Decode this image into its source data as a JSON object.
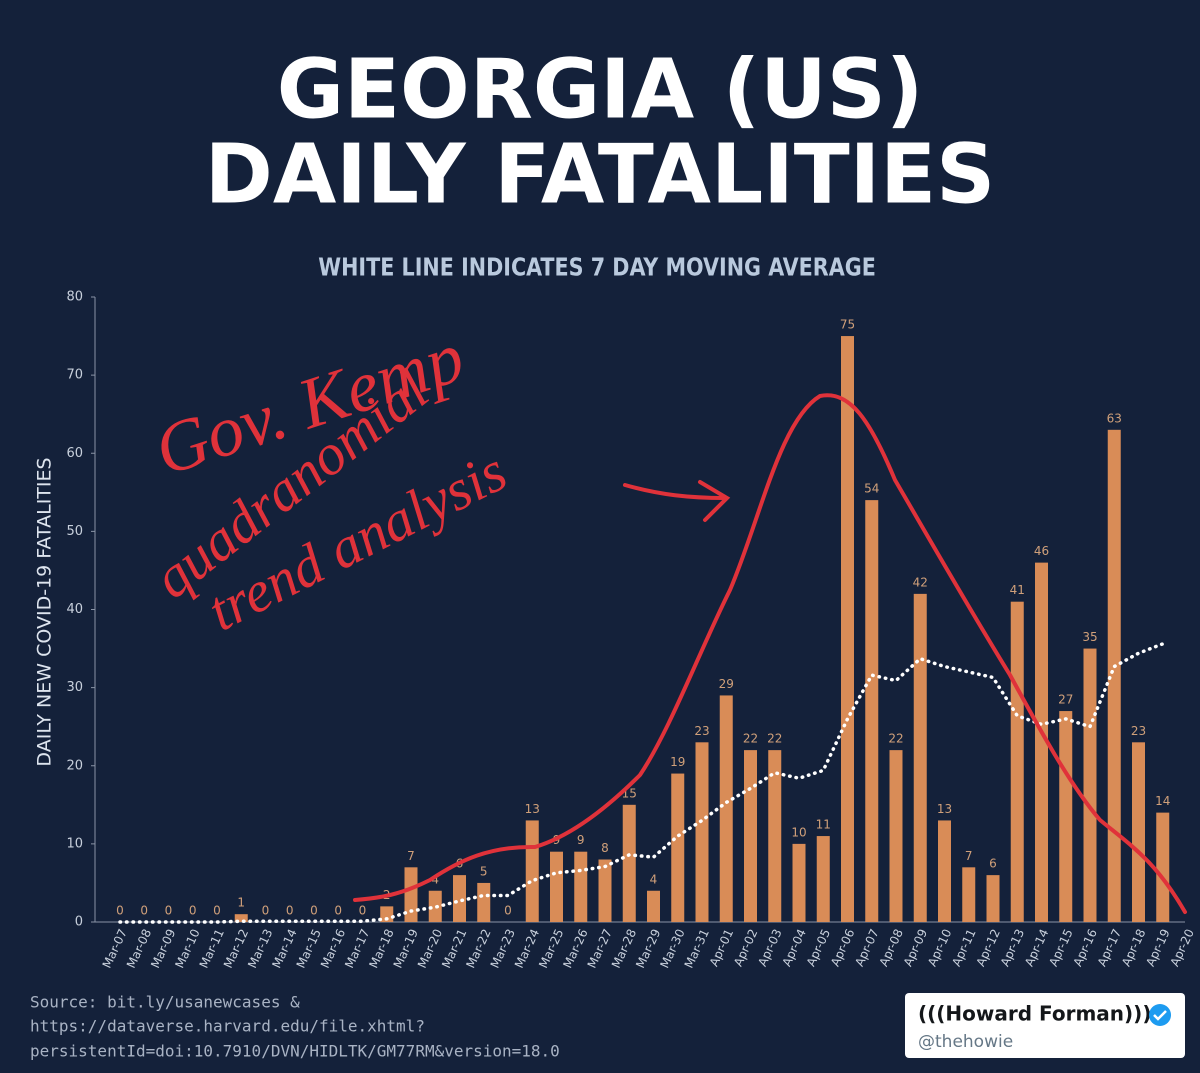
{
  "chart_data": {
    "type": "bar",
    "title": [
      "GEORGIA (US)",
      "DAILY FATALITIES"
    ],
    "subtitle": "WHITE LINE INDICATES 7 DAY MOVING AVERAGE",
    "y_label": "DAILY NEW COVID-19 FATALITIES",
    "categories": [
      "Mar-07",
      "Mar-08",
      "Mar-09",
      "Mar-10",
      "Mar-11",
      "Mar-12",
      "Mar-13",
      "Mar-14",
      "Mar-15",
      "Mar-16",
      "Mar-17",
      "Mar-18",
      "Mar-19",
      "Mar-20",
      "Mar-21",
      "Mar-22",
      "Mar-23",
      "Mar-24",
      "Mar-25",
      "Mar-26",
      "Mar-27",
      "Mar-28",
      "Mar-29",
      "Mar-30",
      "Mar-31",
      "Apr-01",
      "Apr-02",
      "Apr-03",
      "Apr-04",
      "Apr-05",
      "Apr-06",
      "Apr-07",
      "Apr-08",
      "Apr-09",
      "Apr-10",
      "Apr-11",
      "Apr-12",
      "Apr-13",
      "Apr-14",
      "Apr-15",
      "Apr-16",
      "Apr-17",
      "Apr-18",
      "Apr-19",
      "Apr-20"
    ],
    "series": [
      {
        "color": "#d98c57",
        "values": [
          0,
          0,
          0,
          0,
          0,
          1,
          0,
          0,
          0,
          0,
          0,
          2,
          7,
          4,
          6,
          5,
          0,
          13,
          9,
          9,
          8,
          15,
          4,
          19,
          23,
          29,
          22,
          22,
          10,
          11,
          75,
          54,
          22,
          42,
          13,
          7,
          6,
          41,
          46,
          27,
          35,
          63,
          23,
          14,
          null
        ]
      },
      {
        "color": "#ffffff",
        "style": "dotted",
        "values": [
          0,
          0,
          0,
          0,
          0,
          0.1,
          0.1,
          0.1,
          0.1,
          0.1,
          0.1,
          0.4,
          1.4,
          1.9,
          2.7,
          3.4,
          3.4,
          5.3,
          6.3,
          6.6,
          7.1,
          8.6,
          8.3,
          11,
          13,
          15.3,
          17.1,
          19.1,
          18.4,
          19.4,
          26,
          31.6,
          30.9,
          33.7,
          32.7,
          32,
          31.3,
          26.4,
          25.3,
          26,
          25,
          32.7,
          34.4,
          35.6,
          null
        ]
      }
    ],
    "ylim": [
      0,
      80
    ],
    "yticks": [
      0,
      10,
      20,
      30,
      40,
      50,
      60,
      70,
      80
    ],
    "grid": false,
    "annotations": [
      "Gov. Kemp",
      "quadranomial",
      "trend analysis"
    ],
    "source": [
      "Source: bit.ly/usanewcases &",
      "https://dataverse.harvard.edu/file.xhtml?",
      "persistentId=doi:10.7910/DVN/HIDLTK/GM77RM&version=18.0"
    ],
    "credit": {
      "name": "(((Howard Forman)))",
      "handle": "@thehowie"
    }
  }
}
